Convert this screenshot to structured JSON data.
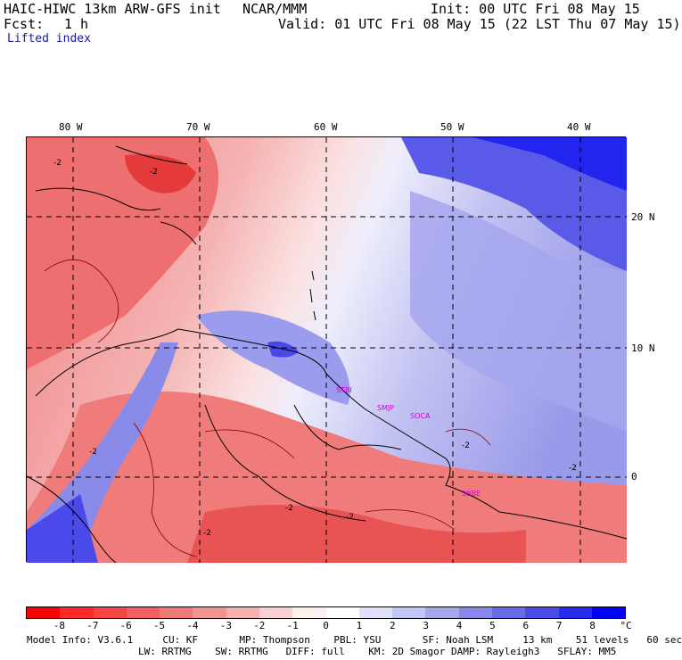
{
  "header": {
    "model": "HAIC-HIWC 13km ARW-GFS init",
    "org": "NCAR/MMM",
    "init": "Init: 00 UTC Fri 08 May 15",
    "fcst_label": "Fcst:",
    "fcst_value": "1 h",
    "valid": "Valid: 01 UTC Fri 08 May 15 (22 LST Thu 07 May 15)",
    "field": "Lifted index"
  },
  "axes": {
    "lon_labels": [
      "80 W",
      "70 W",
      "60 W",
      "50 W",
      "40 W"
    ],
    "lat_labels": [
      "20 N",
      "10 N",
      "0"
    ]
  },
  "contour_labels": [
    "-2",
    "-2",
    "-2",
    "-2",
    "-2",
    "-2",
    "-2",
    "-2"
  ],
  "sites": [
    "STBI",
    "SMJP",
    "SOCA",
    "SBBE"
  ],
  "colorbar": {
    "ticks": [
      "-8",
      "-7",
      "-6",
      "-5",
      "-4",
      "-3",
      "-2",
      "-1",
      "0",
      "1",
      "2",
      "3",
      "4",
      "5",
      "6",
      "7",
      "8"
    ],
    "unit": "°C",
    "colors": [
      "#ff0000",
      "#ff2a2a",
      "#f54545",
      "#f06060",
      "#ee7a7a",
      "#f29494",
      "#f5b0b0",
      "#fad0d0",
      "#fff0f0",
      "#ffffff",
      "#e0e0fa",
      "#c4c4f5",
      "#a6a6ee",
      "#8888ea",
      "#6a6ae6",
      "#4b4be8",
      "#2a2aee",
      "#0000ff"
    ]
  },
  "footer": {
    "line1": "Model Info: V3.6.1     CU: KF       MP: Thompson    PBL: YSU       SF: Noah LSM     13 km    51 levels   60 sec",
    "line2": "LW: RRTMG    SW: RRTMG   DIFF: full    KM: 2D Smagor DAMP: Rayleigh3   SFLAY: MM5"
  }
}
